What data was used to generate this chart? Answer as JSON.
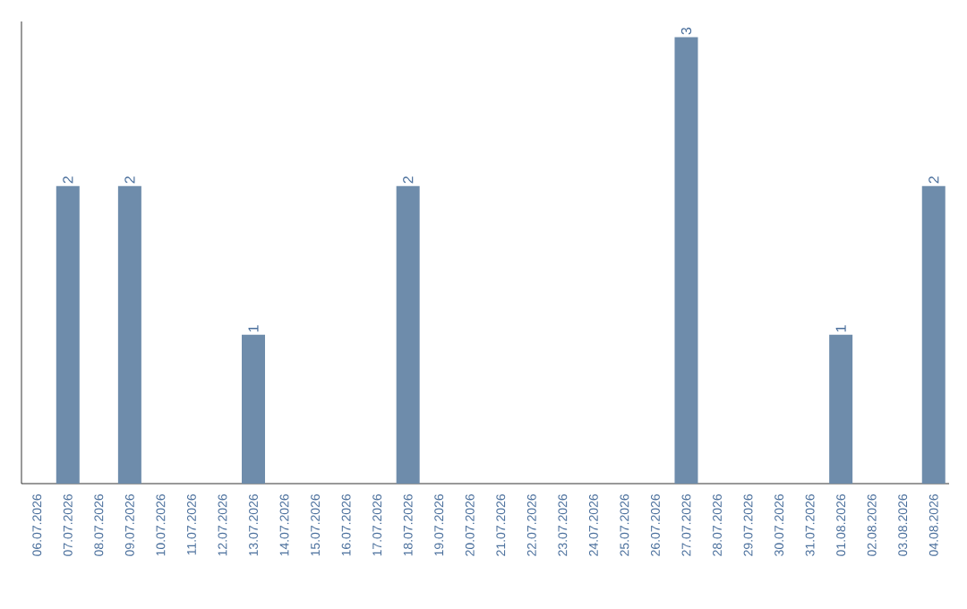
{
  "chart_data": {
    "type": "bar",
    "categories": [
      "06.07.2026",
      "07.07.2026",
      "08.07.2026",
      "09.07.2026",
      "10.07.2026",
      "11.07.2026",
      "12.07.2026",
      "13.07.2026",
      "14.07.2026",
      "15.07.2026",
      "16.07.2026",
      "17.07.2026",
      "18.07.2026",
      "19.07.2026",
      "20.07.2026",
      "21.07.2026",
      "22.07.2026",
      "23.07.2026",
      "24.07.2026",
      "25.07.2026",
      "26.07.2026",
      "27.07.2026",
      "28.07.2026",
      "29.07.2026",
      "30.07.2026",
      "31.07.2026",
      "01.08.2026",
      "02.08.2026",
      "03.08.2026",
      "04.08.2026"
    ],
    "values": [
      0,
      2,
      0,
      2,
      0,
      0,
      0,
      1,
      0,
      0,
      0,
      0,
      2,
      0,
      0,
      0,
      0,
      0,
      0,
      0,
      0,
      3,
      0,
      0,
      0,
      0,
      1,
      0,
      0,
      2
    ],
    "value_labels": [
      null,
      "2",
      null,
      "2",
      null,
      null,
      null,
      "1",
      null,
      null,
      null,
      null,
      "2",
      null,
      null,
      null,
      null,
      null,
      null,
      null,
      null,
      "3",
      null,
      null,
      null,
      null,
      "1",
      null,
      null,
      "2"
    ],
    "color": "#6e8cab"
  }
}
